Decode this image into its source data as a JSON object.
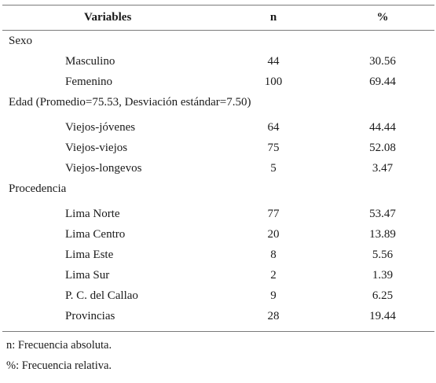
{
  "table": {
    "headers": {
      "variable": "Variables",
      "n": "n",
      "pct": "%"
    },
    "sexo": {
      "label": "Sexo",
      "rows": [
        {
          "name": "Masculino",
          "n": "44",
          "pct": "30.56"
        },
        {
          "name": "Femenino",
          "n": "100",
          "pct": "69.44"
        }
      ]
    },
    "edad": {
      "label": "Edad (Promedio=75.53, Desviación estándar=7.50)",
      "rows": [
        {
          "name": "Viejos-jóvenes",
          "n": "64",
          "pct": "44.44"
        },
        {
          "name": "Viejos-viejos",
          "n": "75",
          "pct": "52.08"
        },
        {
          "name": "Viejos-longevos",
          "n": "5",
          "pct": "3.47"
        }
      ]
    },
    "procedencia": {
      "label": "Procedencia",
      "rows": [
        {
          "name": "Lima Norte",
          "n": "77",
          "pct": "53.47"
        },
        {
          "name": "Lima Centro",
          "n": "20",
          "pct": "13.89"
        },
        {
          "name": "Lima Este",
          "n": "8",
          "pct": "5.56"
        },
        {
          "name": "Lima Sur",
          "n": "2",
          "pct": "1.39"
        },
        {
          "name": "P. C. del Callao",
          "n": "9",
          "pct": "6.25"
        },
        {
          "name": "Provincias",
          "n": "28",
          "pct": "19.44"
        }
      ]
    }
  },
  "notes": {
    "n_note": "n: Frecuencia absoluta.",
    "pct_note": "%: Frecuencia relativa."
  }
}
